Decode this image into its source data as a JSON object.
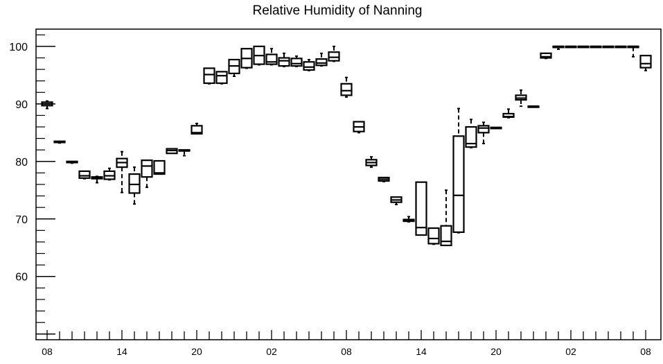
{
  "chart_data": {
    "type": "box",
    "title": "Relative Humidity of Nanning",
    "xlabel": "",
    "ylabel": "",
    "ylim": [
      49,
      103
    ],
    "yticks_labeled": [
      60,
      70,
      80,
      90,
      100
    ],
    "x_tick_labels": [
      "08",
      "14",
      "20",
      "02",
      "08",
      "14",
      "20",
      "02",
      "08"
    ],
    "x_tick_label_hours": [
      0,
      6,
      12,
      18,
      24,
      30,
      36,
      42,
      48
    ],
    "grid": false,
    "legend": "none",
    "colors": {
      "axis": "#000000",
      "box": "#000000",
      "background": "#ffffff"
    },
    "series": [
      {
        "hour": 0,
        "min": 89.2,
        "q1": 89.7,
        "median": 90.0,
        "q3": 90.3,
        "max": 90.5
      },
      {
        "hour": 1,
        "min": 83.2,
        "q1": 83.3,
        "median": 83.4,
        "q3": 83.5,
        "max": 83.5
      },
      {
        "hour": 2,
        "min": 79.7,
        "q1": 79.8,
        "median": 79.9,
        "q3": 80.0,
        "max": 80.0
      },
      {
        "hour": 3,
        "min": 77.0,
        "q1": 77.1,
        "median": 77.5,
        "q3": 78.3,
        "max": 78.3
      },
      {
        "hour": 4,
        "min": 76.3,
        "q1": 77.0,
        "median": 77.2,
        "q3": 77.3,
        "max": 77.4
      },
      {
        "hour": 5,
        "min": 76.8,
        "q1": 76.9,
        "median": 77.5,
        "q3": 78.3,
        "max": 78.8
      },
      {
        "hour": 6,
        "min": 74.6,
        "q1": 79.0,
        "median": 79.8,
        "q3": 80.5,
        "max": 81.7
      },
      {
        "hour": 7,
        "min": 72.6,
        "q1": 74.5,
        "median": 76.0,
        "q3": 77.8,
        "max": 79.0
      },
      {
        "hour": 8,
        "min": 75.5,
        "q1": 77.3,
        "median": 79.2,
        "q3": 80.2,
        "max": 80.2
      },
      {
        "hour": 9,
        "min": 77.8,
        "q1": 77.8,
        "median": 78.0,
        "q3": 80.1,
        "max": 80.1
      },
      {
        "hour": 10,
        "min": 81.4,
        "q1": 81.4,
        "median": 81.9,
        "q3": 82.2,
        "max": 82.2
      },
      {
        "hour": 11,
        "min": 81.0,
        "q1": 81.9,
        "median": 81.9,
        "q3": 82.0,
        "max": 82.0
      },
      {
        "hour": 12,
        "min": 84.8,
        "q1": 84.8,
        "median": 85.0,
        "q3": 86.2,
        "max": 86.6
      },
      {
        "hour": 13,
        "min": 93.5,
        "q1": 93.6,
        "median": 95.1,
        "q3": 96.2,
        "max": 96.2
      },
      {
        "hour": 14,
        "min": 93.5,
        "q1": 93.6,
        "median": 94.9,
        "q3": 95.6,
        "max": 95.6
      },
      {
        "hour": 15,
        "min": 94.8,
        "q1": 95.3,
        "median": 96.6,
        "q3": 97.7,
        "max": 97.7
      },
      {
        "hour": 16,
        "min": 96.2,
        "q1": 96.3,
        "median": 97.9,
        "q3": 99.6,
        "max": 99.6
      },
      {
        "hour": 17,
        "min": 96.8,
        "q1": 96.9,
        "median": 98.4,
        "q3": 100.0,
        "max": 100.0
      },
      {
        "hour": 18,
        "min": 96.8,
        "q1": 96.9,
        "median": 97.3,
        "q3": 98.6,
        "max": 99.6
      },
      {
        "hour": 19,
        "min": 96.5,
        "q1": 96.6,
        "median": 97.5,
        "q3": 98.0,
        "max": 98.8
      },
      {
        "hour": 20,
        "min": 96.5,
        "q1": 96.6,
        "median": 97.0,
        "q3": 97.9,
        "max": 98.3
      },
      {
        "hour": 21,
        "min": 95.8,
        "q1": 95.9,
        "median": 96.4,
        "q3": 97.3,
        "max": 97.7
      },
      {
        "hour": 22,
        "min": 96.6,
        "q1": 96.7,
        "median": 97.1,
        "q3": 97.8,
        "max": 98.8
      },
      {
        "hour": 23,
        "min": 97.4,
        "q1": 97.5,
        "median": 98.1,
        "q3": 99.0,
        "max": 100.0
      },
      {
        "hour": 24,
        "min": 91.2,
        "q1": 91.5,
        "median": 92.3,
        "q3": 93.5,
        "max": 94.6
      },
      {
        "hour": 25,
        "min": 85.0,
        "q1": 85.2,
        "median": 86.0,
        "q3": 86.9,
        "max": 86.9
      },
      {
        "hour": 26,
        "min": 79.0,
        "q1": 79.3,
        "median": 79.8,
        "q3": 80.3,
        "max": 80.8
      },
      {
        "hour": 27,
        "min": 76.5,
        "q1": 76.6,
        "median": 76.9,
        "q3": 77.2,
        "max": 77.2
      },
      {
        "hour": 28,
        "min": 72.5,
        "q1": 72.9,
        "median": 73.3,
        "q3": 73.8,
        "max": 73.8
      },
      {
        "hour": 29,
        "min": 69.5,
        "q1": 69.6,
        "median": 69.7,
        "q3": 69.9,
        "max": 70.4
      },
      {
        "hour": 30,
        "min": 67.2,
        "q1": 67.2,
        "median": 68.5,
        "q3": 76.4,
        "max": 76.4
      },
      {
        "hour": 31,
        "min": 65.6,
        "q1": 65.7,
        "median": 66.6,
        "q3": 68.4,
        "max": 68.4
      },
      {
        "hour": 32,
        "min": 65.4,
        "q1": 65.4,
        "median": 66.1,
        "q3": 68.8,
        "max": 75.0
      },
      {
        "hour": 33,
        "min": 67.6,
        "q1": 67.7,
        "median": 74.1,
        "q3": 84.4,
        "max": 89.2
      },
      {
        "hour": 34,
        "min": 82.4,
        "q1": 82.5,
        "median": 83.1,
        "q3": 86.0,
        "max": 87.3
      },
      {
        "hour": 35,
        "min": 83.1,
        "q1": 85.0,
        "median": 85.8,
        "q3": 86.2,
        "max": 86.8
      },
      {
        "hour": 36,
        "min": 85.9,
        "q1": 85.9,
        "median": 85.9,
        "q3": 85.9,
        "max": 85.9
      },
      {
        "hour": 37,
        "min": 87.6,
        "q1": 87.7,
        "median": 87.8,
        "q3": 88.3,
        "max": 89.1
      },
      {
        "hour": 38,
        "min": 89.6,
        "q1": 90.7,
        "median": 91.0,
        "q3": 91.5,
        "max": 92.4
      },
      {
        "hour": 39,
        "min": 89.6,
        "q1": 89.6,
        "median": 89.6,
        "q3": 89.6,
        "max": 89.6
      },
      {
        "hour": 40,
        "min": 97.9,
        "q1": 98.0,
        "median": 98.2,
        "q3": 98.8,
        "max": 98.8
      },
      {
        "hour": 41,
        "min": 99.5,
        "q1": 99.9,
        "median": 100.0,
        "q3": 100.0,
        "max": 100.0
      },
      {
        "hour": 42,
        "min": 100.0,
        "q1": 100.0,
        "median": 100.0,
        "q3": 100.0,
        "max": 100.0
      },
      {
        "hour": 43,
        "min": 100.0,
        "q1": 100.0,
        "median": 100.0,
        "q3": 100.0,
        "max": 100.0
      },
      {
        "hour": 44,
        "min": 100.0,
        "q1": 100.0,
        "median": 100.0,
        "q3": 100.0,
        "max": 100.0
      },
      {
        "hour": 45,
        "min": 100.0,
        "q1": 100.0,
        "median": 100.0,
        "q3": 100.0,
        "max": 100.0
      },
      {
        "hour": 46,
        "min": 100.0,
        "q1": 100.0,
        "median": 100.0,
        "q3": 100.0,
        "max": 100.0
      },
      {
        "hour": 47,
        "min": 98.2,
        "q1": 99.9,
        "median": 100.0,
        "q3": 100.0,
        "max": 100.0
      },
      {
        "hour": 48,
        "min": 95.8,
        "q1": 96.3,
        "median": 97.0,
        "q3": 98.4,
        "max": 98.4
      }
    ]
  }
}
